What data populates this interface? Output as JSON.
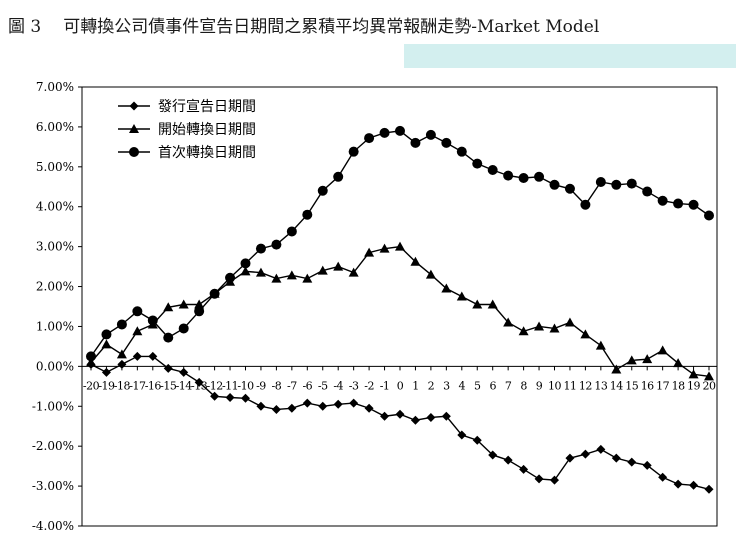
{
  "figure": {
    "number": "圖 3",
    "title": "可轉換公司債事件宣告日期間之累積平均異常報酬走勢-Market Model"
  },
  "chart_data": {
    "type": "line",
    "title": "可轉換公司債事件宣告日期間之累積平均異常報酬走勢-Market Model",
    "xlabel": "",
    "ylabel": "",
    "categories": [
      "-20",
      "-19",
      "-18",
      "-17",
      "-16",
      "-15",
      "-14",
      "-13",
      "-12",
      "-11",
      "-10",
      "-9",
      "-8",
      "-7",
      "-6",
      "-5",
      "-4",
      "-3",
      "-2",
      "-1",
      "0",
      "1",
      "2",
      "3",
      "4",
      "5",
      "6",
      "7",
      "8",
      "9",
      "10",
      "11",
      "12",
      "13",
      "14",
      "15",
      "16",
      "17",
      "18",
      "19",
      "20"
    ],
    "ylim": [
      -4.0,
      7.0
    ],
    "yticks": [
      "7.00%",
      "6.00%",
      "5.00%",
      "4.00%",
      "3.00%",
      "2.00%",
      "1.00%",
      "0.00%",
      "-1.00%",
      "-2.00%",
      "-3.00%",
      "-4.00%"
    ],
    "legend_position": "top-left",
    "grid": false,
    "series": [
      {
        "name": "發行宣告日期間",
        "marker": "diamond",
        "values": [
          0.05,
          -0.15,
          0.05,
          0.25,
          0.25,
          -0.05,
          -0.15,
          -0.4,
          -0.75,
          -0.78,
          -0.8,
          -1.0,
          -1.08,
          -1.05,
          -0.92,
          -1.0,
          -0.95,
          -0.92,
          -1.05,
          -1.25,
          -1.2,
          -1.35,
          -1.28,
          -1.25,
          -1.72,
          -1.85,
          -2.22,
          -2.35,
          -2.58,
          -2.82,
          -2.85,
          -2.3,
          -2.2,
          -2.08,
          -2.3,
          -2.4,
          -2.48,
          -2.78,
          -2.95,
          -2.98,
          -3.08
        ]
      },
      {
        "name": "開始轉換日期間",
        "marker": "triangle",
        "values": [
          0.1,
          0.55,
          0.3,
          0.88,
          1.05,
          1.48,
          1.55,
          1.55,
          1.82,
          2.12,
          2.38,
          2.35,
          2.2,
          2.28,
          2.2,
          2.4,
          2.5,
          2.35,
          2.85,
          2.95,
          3.0,
          2.62,
          2.3,
          1.95,
          1.75,
          1.55,
          1.55,
          1.1,
          0.88,
          1.0,
          0.95,
          1.1,
          0.8,
          0.52,
          -0.08,
          0.15,
          0.18,
          0.4,
          0.08,
          -0.2,
          -0.25
        ]
      },
      {
        "name": "首次轉換日期間",
        "marker": "circle",
        "values": [
          0.25,
          0.8,
          1.05,
          1.38,
          1.15,
          0.72,
          0.95,
          1.38,
          1.82,
          2.22,
          2.58,
          2.95,
          3.05,
          3.38,
          3.8,
          4.4,
          4.75,
          5.38,
          5.72,
          5.85,
          5.9,
          5.6,
          5.8,
          5.6,
          5.38,
          5.08,
          4.92,
          4.78,
          4.72,
          4.75,
          4.55,
          4.45,
          4.05,
          4.62,
          4.55,
          4.58,
          4.38,
          4.15,
          4.08,
          4.05,
          3.78
        ]
      }
    ]
  }
}
